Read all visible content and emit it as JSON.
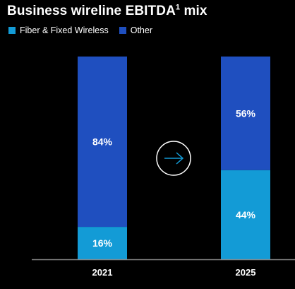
{
  "title_main": "Business wireline EBITDA",
  "title_sup": "1",
  "title_suffix": " mix",
  "colors": {
    "fiber": "#139BD6",
    "other": "#1F4FBF",
    "background": "#000000",
    "axis": "#8a8a8a"
  },
  "icons": {
    "transition": "arrow-right-circle-icon"
  },
  "chart_data": {
    "type": "bar",
    "stacked": true,
    "ylim": [
      0,
      100
    ],
    "categories": [
      "2021",
      "2025"
    ],
    "series": [
      {
        "name": "Fiber & Fixed Wireless",
        "values": [
          16,
          44
        ],
        "labels": [
          "16%",
          "44%"
        ]
      },
      {
        "name": "Other",
        "values": [
          84,
          56
        ],
        "labels": [
          "84%",
          "56%"
        ]
      }
    ],
    "legend": "top-left",
    "grid": false
  }
}
